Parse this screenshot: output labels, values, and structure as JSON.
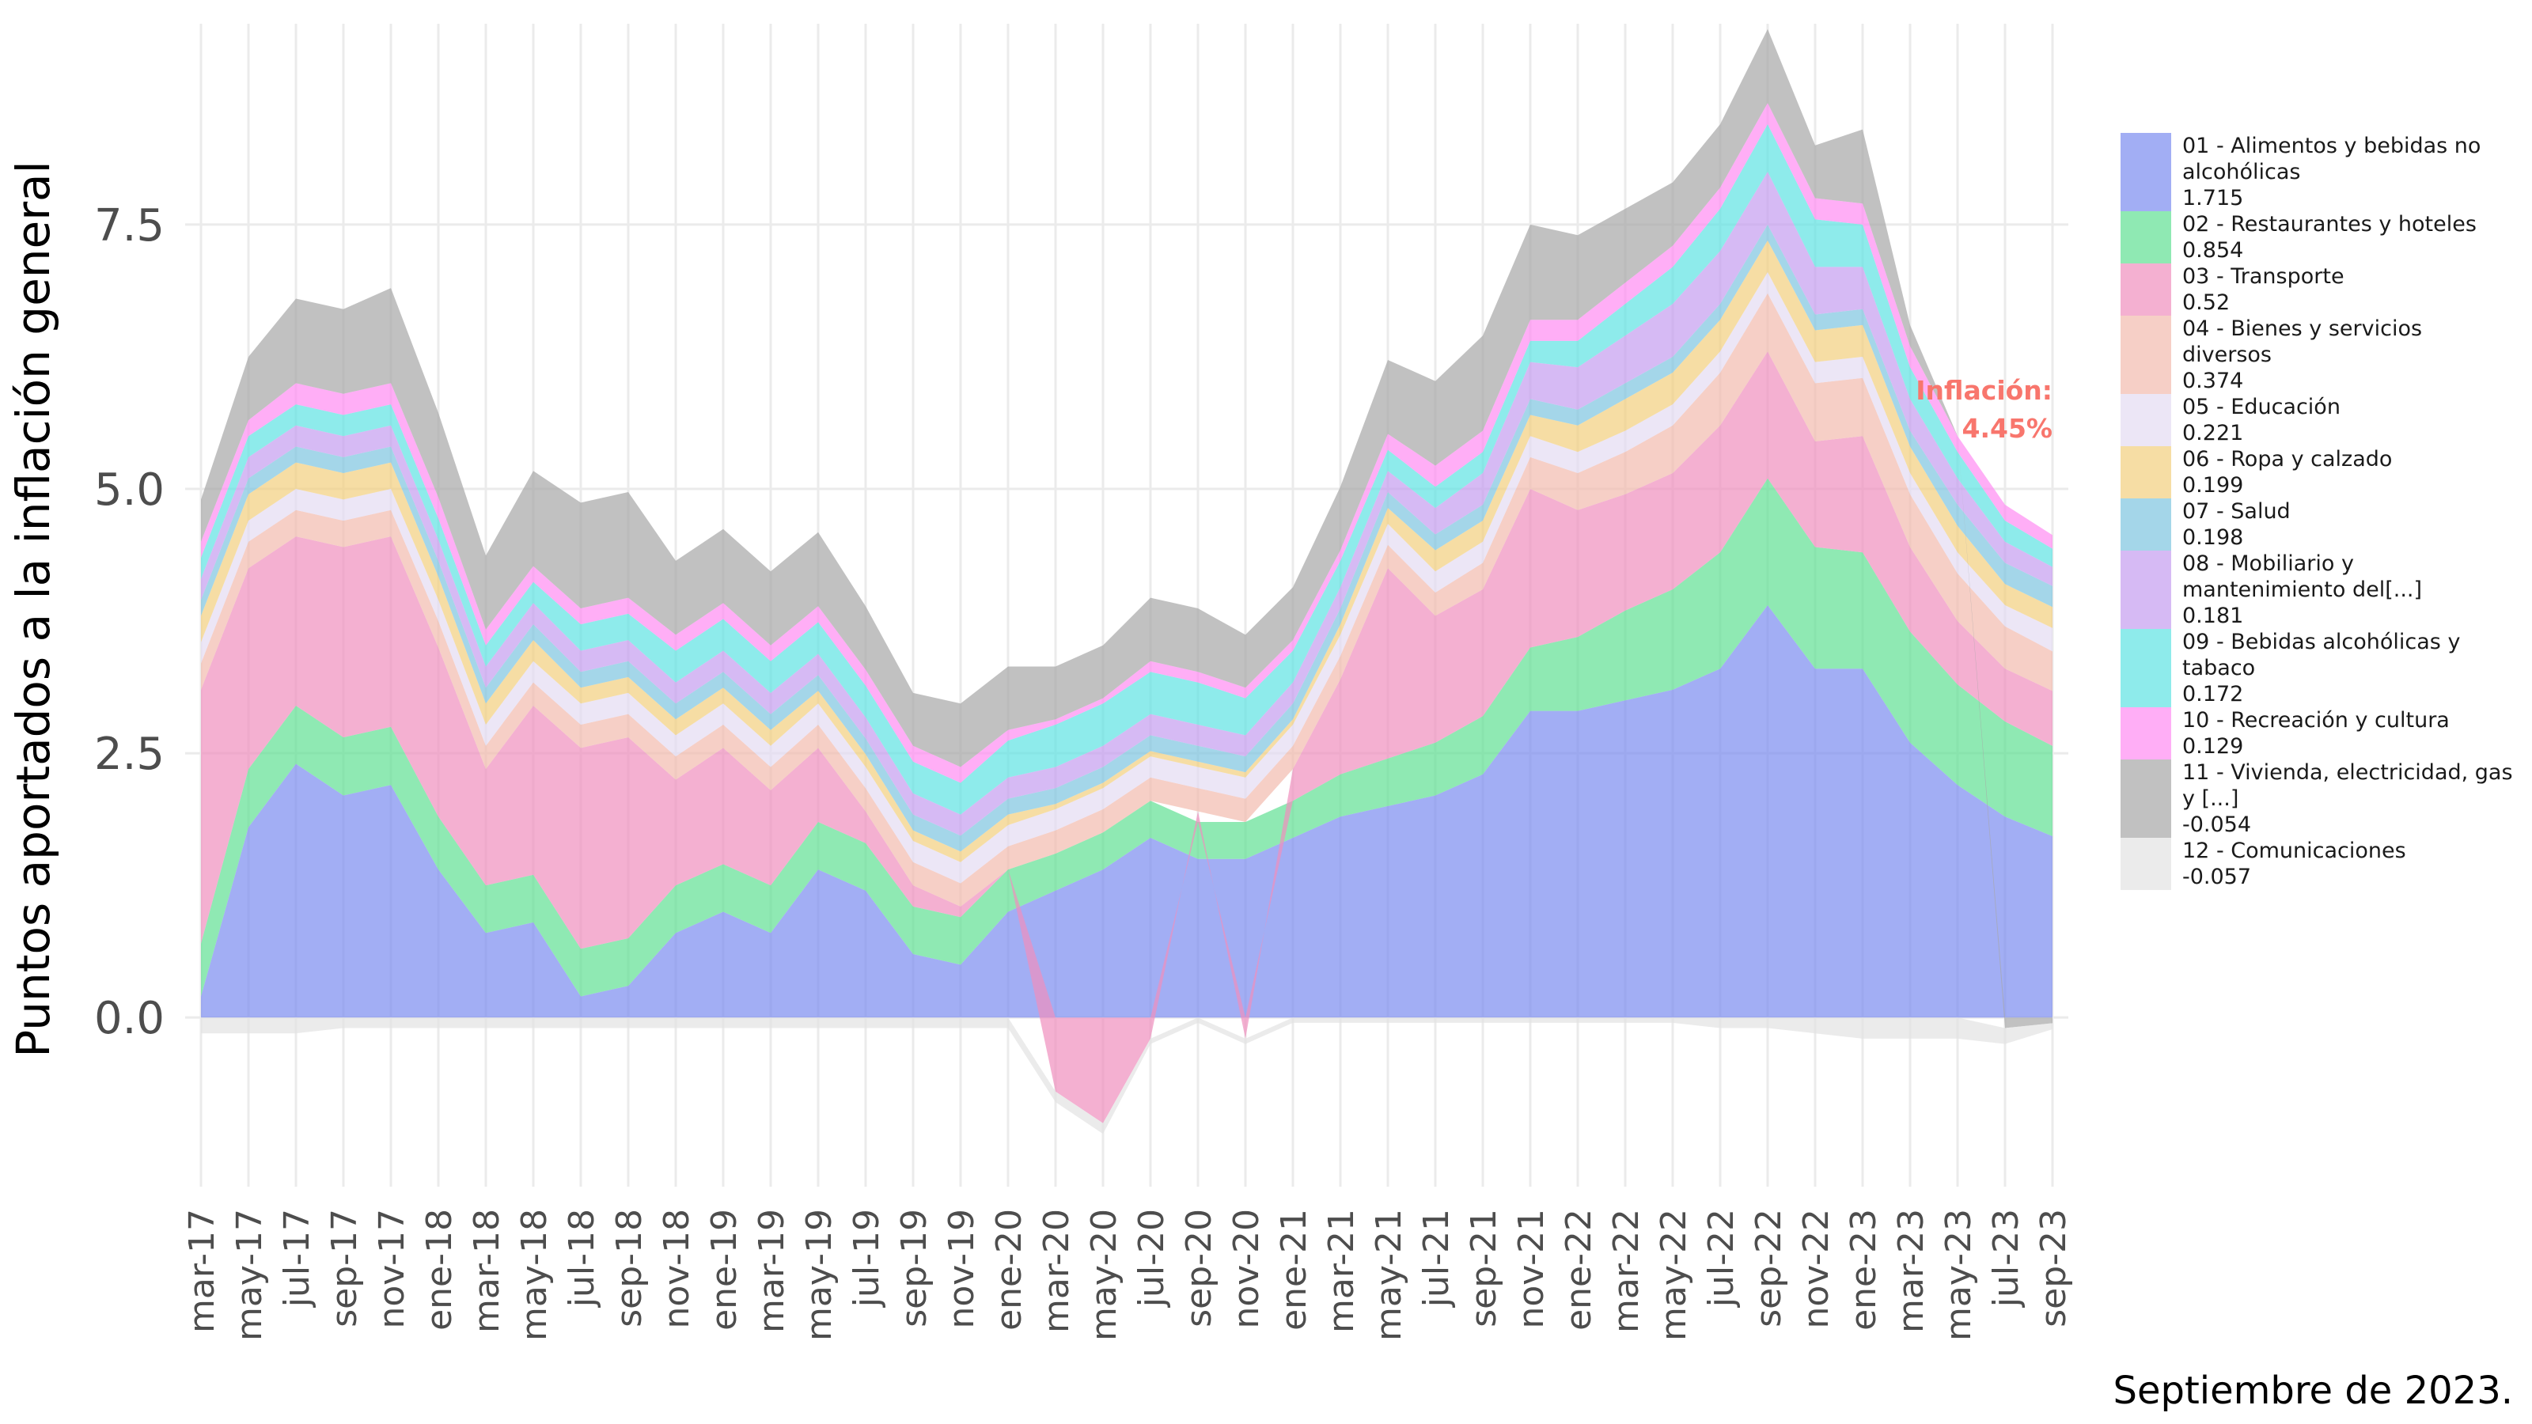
{
  "chart_data": {
    "type": "area",
    "stacked": true,
    "ylabel": "Puntos aportados a la inflación general",
    "caption": "Septiembre de 2023.",
    "annotation": {
      "label": "Inflación:",
      "value": "4.45%"
    },
    "yticks": [
      "0.0",
      "2.5",
      "5.0",
      "7.5"
    ],
    "ylim": [
      -1.6,
      9.4
    ],
    "x": [
      "2017-03",
      "2017-05",
      "2017-07",
      "2017-09",
      "2017-11",
      "2018-01",
      "2018-03",
      "2018-05",
      "2018-07",
      "2018-09",
      "2018-11",
      "2019-01",
      "2019-03",
      "2019-05",
      "2019-07",
      "2019-09",
      "2019-11",
      "2020-01",
      "2020-03",
      "2020-05",
      "2020-07",
      "2020-09",
      "2020-11",
      "2021-01",
      "2021-03",
      "2021-05",
      "2021-07",
      "2021-09",
      "2021-11",
      "2022-01",
      "2022-03",
      "2022-05",
      "2022-07",
      "2022-09",
      "2022-11",
      "2023-01",
      "2023-03",
      "2023-05",
      "2023-07",
      "2023-09"
    ],
    "xtick_labels": [
      "mar-17",
      "may-17",
      "jul-17",
      "sep-17",
      "nov-17",
      "ene-18",
      "mar-18",
      "may-18",
      "jul-18",
      "sep-18",
      "nov-18",
      "ene-19",
      "mar-19",
      "may-19",
      "jul-19",
      "sep-19",
      "nov-19",
      "ene-20",
      "mar-20",
      "may-20",
      "jul-20",
      "sep-20",
      "nov-20",
      "ene-21",
      "mar-21",
      "may-21",
      "jul-21",
      "sep-21",
      "nov-21",
      "ene-22",
      "mar-22",
      "may-22",
      "jul-22",
      "sep-22",
      "nov-22",
      "ene-23",
      "mar-23",
      "may-23",
      "jul-23",
      "sep-23"
    ],
    "total_inflation": [
      4.7,
      5.8,
      6.4,
      6.4,
      6.7,
      5.6,
      5.0,
      4.5,
      4.7,
      4.8,
      4.4,
      4.4,
      4.0,
      4.4,
      3.9,
      3.0,
      2.9,
      3.3,
      3.6,
      3.6,
      3.7,
      4.0,
      3.4,
      3.6,
      4.6,
      5.9,
      5.8,
      6.2,
      7.3,
      7.2,
      7.5,
      7.8,
      8.2,
      8.8,
      7.7,
      8.1,
      6.6,
      5.7,
      5.0,
      4.45
    ],
    "series": [
      {
        "name": "01 - Alimentos y bebidas no alcohólicas",
        "last": "1.715",
        "color": "#7B8BF0",
        "values": [
          0.2,
          1.8,
          2.4,
          2.1,
          2.2,
          1.4,
          0.8,
          0.9,
          0.2,
          0.3,
          0.8,
          1.0,
          0.8,
          1.4,
          1.2,
          0.6,
          0.5,
          1.0,
          1.2,
          1.4,
          1.7,
          1.5,
          1.5,
          1.7,
          1.9,
          2.0,
          2.1,
          2.3,
          2.9,
          2.9,
          3.0,
          3.1,
          3.3,
          3.9,
          3.3,
          3.3,
          2.6,
          2.2,
          1.9,
          1.715
        ]
      },
      {
        "name": "02 - Restaurantes y hoteles",
        "last": "0.854",
        "color": "#5FE093",
        "values": [
          0.5,
          0.55,
          0.55,
          0.55,
          0.55,
          0.5,
          0.45,
          0.45,
          0.45,
          0.45,
          0.45,
          0.45,
          0.45,
          0.45,
          0.45,
          0.45,
          0.45,
          0.4,
          0.35,
          0.35,
          0.35,
          0.35,
          0.35,
          0.35,
          0.4,
          0.45,
          0.5,
          0.55,
          0.6,
          0.7,
          0.85,
          0.95,
          1.1,
          1.2,
          1.15,
          1.1,
          1.05,
          0.95,
          0.9,
          0.854
        ]
      },
      {
        "name": "03 - Transporte",
        "last": "0.52",
        "color": "#F08FBE",
        "values": [
          2.4,
          1.9,
          1.6,
          1.8,
          1.8,
          1.6,
          1.1,
          1.6,
          1.9,
          1.9,
          1.0,
          1.1,
          0.9,
          0.7,
          0.3,
          0.2,
          0.1,
          0.0,
          -0.7,
          -1.0,
          -0.2,
          0.1,
          -0.2,
          0.3,
          0.9,
          1.8,
          1.2,
          1.2,
          1.5,
          1.2,
          1.1,
          1.1,
          1.2,
          1.2,
          1.0,
          1.1,
          0.8,
          0.6,
          0.5,
          0.52
        ]
      },
      {
        "name": "04 - Bienes y servicios diversos",
        "last": "0.374",
        "color": "#F2BBAE",
        "values": [
          0.25,
          0.25,
          0.25,
          0.25,
          0.25,
          0.25,
          0.22,
          0.22,
          0.22,
          0.22,
          0.22,
          0.22,
          0.22,
          0.22,
          0.22,
          0.22,
          0.22,
          0.22,
          0.22,
          0.22,
          0.22,
          0.22,
          0.22,
          0.22,
          0.22,
          0.22,
          0.22,
          0.25,
          0.3,
          0.35,
          0.4,
          0.45,
          0.5,
          0.55,
          0.55,
          0.55,
          0.5,
          0.45,
          0.4,
          0.374
        ]
      },
      {
        "name": "05 - Educación",
        "last": "0.221",
        "color": "#E4DBF2",
        "values": [
          0.2,
          0.2,
          0.2,
          0.2,
          0.2,
          0.2,
          0.2,
          0.2,
          0.2,
          0.2,
          0.2,
          0.2,
          0.2,
          0.2,
          0.2,
          0.2,
          0.2,
          0.2,
          0.2,
          0.2,
          0.2,
          0.2,
          0.2,
          0.2,
          0.2,
          0.2,
          0.2,
          0.2,
          0.2,
          0.2,
          0.2,
          0.2,
          0.2,
          0.2,
          0.2,
          0.2,
          0.2,
          0.2,
          0.2,
          0.221
        ]
      },
      {
        "name": "06 - Ropa y calzado",
        "last": "0.199",
        "color": "#F2CF7E",
        "values": [
          0.25,
          0.25,
          0.25,
          0.25,
          0.25,
          0.22,
          0.2,
          0.2,
          0.15,
          0.15,
          0.15,
          0.15,
          0.15,
          0.12,
          0.12,
          0.1,
          0.1,
          0.1,
          0.05,
          0.05,
          0.05,
          0.05,
          0.05,
          0.05,
          0.1,
          0.15,
          0.2,
          0.2,
          0.2,
          0.25,
          0.3,
          0.3,
          0.3,
          0.3,
          0.3,
          0.3,
          0.25,
          0.25,
          0.2,
          0.199
        ]
      },
      {
        "name": "07 - Salud",
        "last": "0.198",
        "color": "#7EC4E0",
        "values": [
          0.15,
          0.15,
          0.15,
          0.15,
          0.15,
          0.15,
          0.15,
          0.15,
          0.15,
          0.15,
          0.15,
          0.15,
          0.15,
          0.15,
          0.15,
          0.15,
          0.15,
          0.15,
          0.15,
          0.15,
          0.15,
          0.15,
          0.15,
          0.15,
          0.15,
          0.15,
          0.15,
          0.15,
          0.15,
          0.15,
          0.15,
          0.15,
          0.15,
          0.15,
          0.15,
          0.15,
          0.15,
          0.2,
          0.2,
          0.198
        ]
      },
      {
        "name": "08 - Mobiliario y mantenimiento del[...]",
        "last": "0.181",
        "color": "#C49CF0",
        "values": [
          0.2,
          0.2,
          0.2,
          0.2,
          0.2,
          0.2,
          0.2,
          0.2,
          0.2,
          0.2,
          0.2,
          0.2,
          0.2,
          0.2,
          0.2,
          0.2,
          0.2,
          0.2,
          0.2,
          0.2,
          0.2,
          0.2,
          0.2,
          0.2,
          0.2,
          0.2,
          0.25,
          0.3,
          0.35,
          0.4,
          0.45,
          0.5,
          0.5,
          0.5,
          0.45,
          0.4,
          0.3,
          0.25,
          0.2,
          0.181
        ]
      },
      {
        "name": "09 - Bebidas alcohólicas y tabaco",
        "last": "0.172",
        "color": "#5EE2E2",
        "values": [
          0.2,
          0.2,
          0.2,
          0.2,
          0.2,
          0.2,
          0.2,
          0.2,
          0.25,
          0.25,
          0.3,
          0.3,
          0.3,
          0.3,
          0.3,
          0.3,
          0.3,
          0.35,
          0.4,
          0.4,
          0.4,
          0.4,
          0.35,
          0.3,
          0.25,
          0.2,
          0.2,
          0.2,
          0.2,
          0.25,
          0.3,
          0.35,
          0.4,
          0.45,
          0.45,
          0.4,
          0.3,
          0.25,
          0.2,
          0.172
        ]
      },
      {
        "name": "10 - Recreación y cultura",
        "last": "0.129",
        "color": "#FF8CF2",
        "values": [
          0.15,
          0.15,
          0.2,
          0.2,
          0.2,
          0.2,
          0.15,
          0.15,
          0.15,
          0.15,
          0.15,
          0.15,
          0.15,
          0.15,
          0.15,
          0.15,
          0.15,
          0.1,
          0.05,
          0.05,
          0.1,
          0.1,
          0.1,
          0.1,
          0.1,
          0.15,
          0.2,
          0.2,
          0.2,
          0.2,
          0.2,
          0.2,
          0.2,
          0.2,
          0.2,
          0.2,
          0.2,
          0.15,
          0.15,
          0.129
        ]
      },
      {
        "name": "11 - Vivienda, electricidad, gas y [...]",
        "last": "-0.054",
        "color": "#A6A6A6",
        "values": [
          0.4,
          0.6,
          0.8,
          0.8,
          0.9,
          0.8,
          0.7,
          0.9,
          1.0,
          1.0,
          0.7,
          0.7,
          0.7,
          0.7,
          0.6,
          0.5,
          0.6,
          0.6,
          0.5,
          0.5,
          0.6,
          0.6,
          0.5,
          0.5,
          0.6,
          0.7,
          0.8,
          0.9,
          0.9,
          0.8,
          0.7,
          0.6,
          0.6,
          0.7,
          0.5,
          0.7,
          0.2,
          0.0,
          -0.1,
          -0.054
        ]
      },
      {
        "name": "12 - Comunicaciones",
        "last": "-0.057",
        "color": "#E3E3E3",
        "values": [
          -0.15,
          -0.15,
          -0.15,
          -0.1,
          -0.1,
          -0.1,
          -0.1,
          -0.1,
          -0.1,
          -0.1,
          -0.1,
          -0.1,
          -0.1,
          -0.1,
          -0.1,
          -0.1,
          -0.1,
          -0.1,
          -0.1,
          -0.1,
          -0.05,
          -0.05,
          -0.05,
          -0.05,
          -0.05,
          -0.05,
          -0.05,
          -0.05,
          -0.05,
          -0.05,
          -0.05,
          -0.05,
          -0.1,
          -0.1,
          -0.15,
          -0.2,
          -0.2,
          -0.2,
          -0.15,
          -0.057
        ]
      }
    ]
  }
}
